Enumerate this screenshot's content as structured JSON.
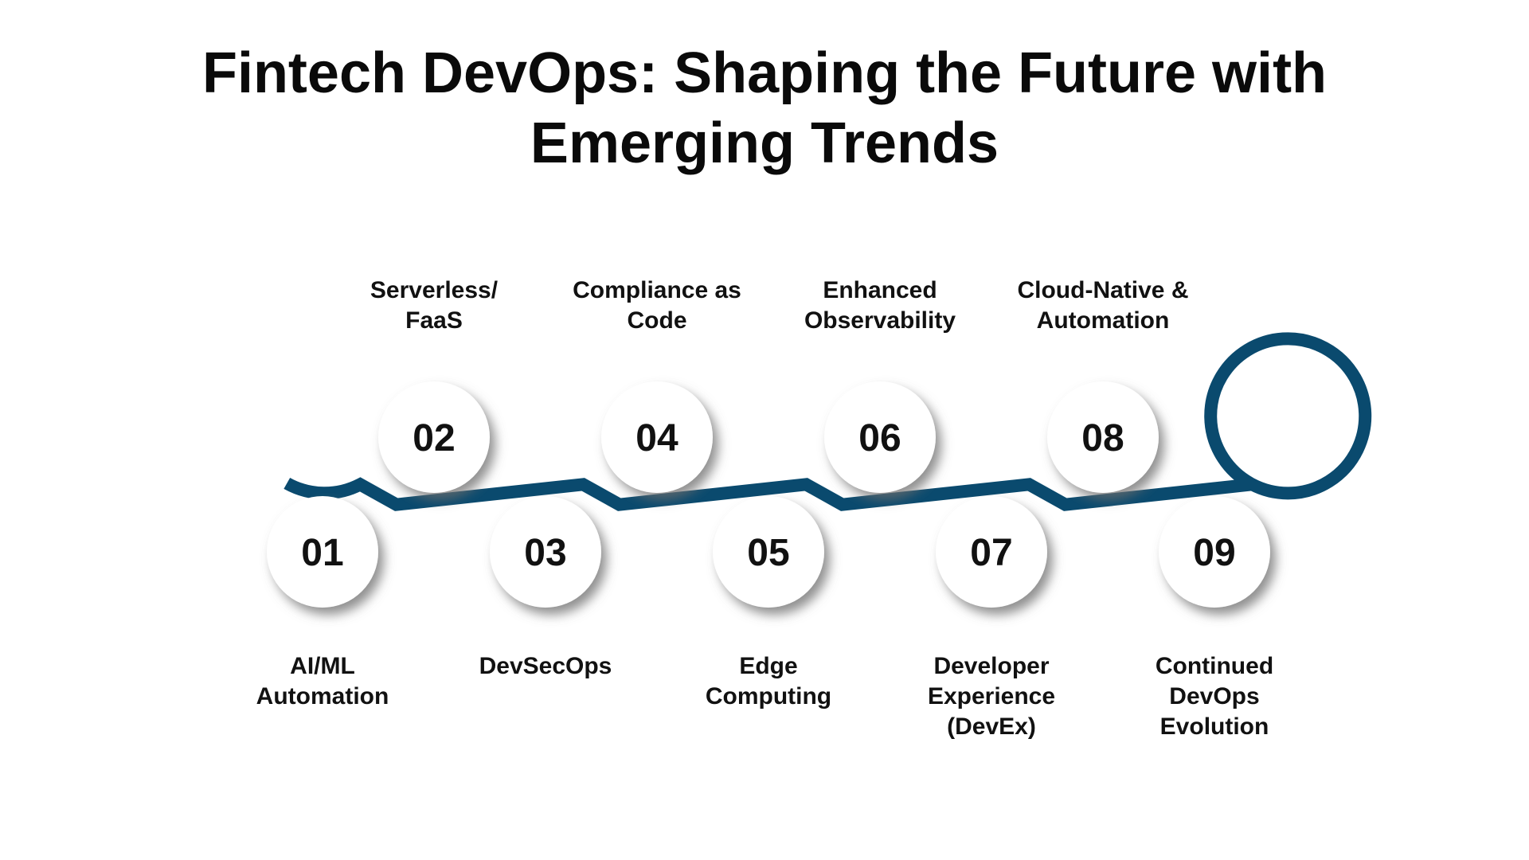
{
  "title": {
    "line1": "Fintech DevOps: Shaping the Future with",
    "line2": "Emerging Trends"
  },
  "colors": {
    "ring": "#0a4a6e",
    "inner_fill": "#ffffff",
    "shadow": "#6b6b6b",
    "text": "#111111"
  },
  "steps": [
    {
      "number": "01",
      "label_lines": [
        "AI/ML",
        "Automation"
      ]
    },
    {
      "number": "02",
      "label_lines": [
        "Serverless/",
        "FaaS"
      ]
    },
    {
      "number": "03",
      "label_lines": [
        "DevSecOps"
      ]
    },
    {
      "number": "04",
      "label_lines": [
        "Compliance as",
        "Code"
      ]
    },
    {
      "number": "05",
      "label_lines": [
        "Edge",
        "Computing"
      ]
    },
    {
      "number": "06",
      "label_lines": [
        "Enhanced",
        "Observability"
      ]
    },
    {
      "number": "07",
      "label_lines": [
        "Developer",
        "Experience",
        "(DevEx)"
      ]
    },
    {
      "number": "08",
      "label_lines": [
        "Cloud-Native &",
        "Automation"
      ]
    },
    {
      "number": "09",
      "label_lines": [
        "Continued",
        "DevOps",
        "Evolution"
      ]
    }
  ]
}
